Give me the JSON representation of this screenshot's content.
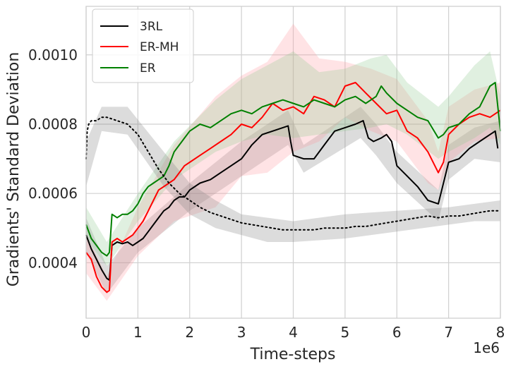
{
  "chart_data": {
    "type": "line",
    "xlabel": "Time-steps",
    "ylabel": "Gradients' Standard Deviation",
    "x_scale_label": "1e6",
    "xlim": [
      0,
      8
    ],
    "ylim": [
      0.00024,
      0.00114
    ],
    "x_ticks": [
      0,
      1,
      2,
      3,
      4,
      5,
      6,
      7,
      8
    ],
    "x_tick_labels": [
      "0",
      "1",
      "2",
      "3",
      "4",
      "5",
      "6",
      "7",
      "8"
    ],
    "y_ticks": [
      0.0004,
      0.0006,
      0.0008,
      0.001
    ],
    "y_tick_labels": [
      "0.0004",
      "0.0006",
      "0.0008",
      "0.0010"
    ],
    "grid": true,
    "legend_position": "top-left",
    "series": [
      {
        "name": "3RL",
        "color": "#000000",
        "style": "solid",
        "x": [
          0.0,
          0.1,
          0.2,
          0.3,
          0.4,
          0.45,
          0.5,
          0.6,
          0.7,
          0.8,
          0.9,
          1.0,
          1.1,
          1.2,
          1.3,
          1.4,
          1.5,
          1.6,
          1.7,
          1.8,
          1.9,
          2.0,
          2.2,
          2.4,
          2.6,
          2.8,
          3.0,
          3.1,
          3.2,
          3.4,
          3.6,
          3.8,
          3.9,
          3.95,
          4.0,
          4.1,
          4.2,
          4.3,
          4.4,
          4.6,
          4.8,
          5.0,
          5.2,
          5.35,
          5.45,
          5.55,
          5.7,
          5.8,
          5.9,
          6.0,
          6.2,
          6.4,
          6.6,
          6.8,
          6.9,
          7.0,
          7.2,
          7.4,
          7.6,
          7.8,
          7.9,
          7.95
        ],
        "y": [
          0.00048,
          0.00044,
          0.00041,
          0.00038,
          0.000355,
          0.00035,
          0.00045,
          0.00046,
          0.000455,
          0.00046,
          0.00045,
          0.00046,
          0.00047,
          0.00049,
          0.00051,
          0.00053,
          0.00055,
          0.00056,
          0.00058,
          0.00059,
          0.00059,
          0.00061,
          0.00063,
          0.00064,
          0.00066,
          0.00068,
          0.0007,
          0.00072,
          0.00074,
          0.00077,
          0.00078,
          0.00079,
          0.000795,
          0.00075,
          0.00071,
          0.000705,
          0.0007,
          0.0007,
          0.0007,
          0.00074,
          0.00078,
          0.00079,
          0.0008,
          0.00081,
          0.00076,
          0.00075,
          0.00076,
          0.00077,
          0.00075,
          0.00068,
          0.00065,
          0.00062,
          0.00058,
          0.00057,
          0.00063,
          0.00069,
          0.0007,
          0.00073,
          0.00075,
          0.00077,
          0.00078,
          0.00073
        ]
      },
      {
        "name": "ER-MH",
        "color": "#ff0000",
        "style": "solid",
        "x": [
          0.0,
          0.1,
          0.2,
          0.3,
          0.4,
          0.45,
          0.5,
          0.6,
          0.7,
          0.8,
          0.9,
          1.0,
          1.1,
          1.2,
          1.3,
          1.4,
          1.5,
          1.6,
          1.7,
          1.8,
          1.9,
          2.0,
          2.2,
          2.4,
          2.6,
          2.8,
          3.0,
          3.2,
          3.4,
          3.6,
          3.8,
          4.0,
          4.2,
          4.4,
          4.6,
          4.8,
          5.0,
          5.2,
          5.4,
          5.6,
          5.8,
          6.0,
          6.2,
          6.4,
          6.6,
          6.8,
          6.9,
          7.0,
          7.2,
          7.4,
          7.6,
          7.8,
          8.0
        ],
        "y": [
          0.00043,
          0.00041,
          0.00036,
          0.00033,
          0.000315,
          0.00032,
          0.00046,
          0.00047,
          0.00046,
          0.00047,
          0.00048,
          0.0005,
          0.00052,
          0.00055,
          0.00058,
          0.00061,
          0.00062,
          0.00063,
          0.00064,
          0.00066,
          0.00068,
          0.00069,
          0.00071,
          0.00073,
          0.00075,
          0.00077,
          0.0008,
          0.00079,
          0.00082,
          0.00086,
          0.00084,
          0.00085,
          0.00083,
          0.00088,
          0.00087,
          0.00085,
          0.00091,
          0.00092,
          0.00089,
          0.00086,
          0.00083,
          0.00084,
          0.00078,
          0.00076,
          0.00072,
          0.00066,
          0.00069,
          0.00077,
          0.0008,
          0.00082,
          0.00083,
          0.00082,
          0.00084
        ]
      },
      {
        "name": "ER",
        "color": "#008000",
        "style": "solid",
        "x": [
          0.0,
          0.1,
          0.2,
          0.3,
          0.4,
          0.45,
          0.5,
          0.6,
          0.7,
          0.8,
          0.9,
          1.0,
          1.1,
          1.2,
          1.3,
          1.4,
          1.5,
          1.6,
          1.7,
          1.8,
          1.9,
          2.0,
          2.2,
          2.4,
          2.6,
          2.8,
          3.0,
          3.2,
          3.4,
          3.6,
          3.8,
          4.0,
          4.2,
          4.4,
          4.6,
          4.8,
          5.0,
          5.2,
          5.4,
          5.6,
          5.7,
          5.8,
          6.0,
          6.2,
          6.4,
          6.6,
          6.8,
          6.9,
          7.0,
          7.2,
          7.4,
          7.6,
          7.8,
          7.9,
          8.0
        ],
        "y": [
          0.00051,
          0.00047,
          0.00045,
          0.00043,
          0.00042,
          0.00043,
          0.00054,
          0.00053,
          0.00054,
          0.00054,
          0.00055,
          0.00057,
          0.0006,
          0.00062,
          0.00063,
          0.00064,
          0.00065,
          0.00068,
          0.00072,
          0.00074,
          0.00076,
          0.00078,
          0.0008,
          0.00079,
          0.00081,
          0.00083,
          0.00084,
          0.00083,
          0.00085,
          0.00086,
          0.00087,
          0.00086,
          0.00085,
          0.00087,
          0.00086,
          0.00085,
          0.00087,
          0.00088,
          0.00086,
          0.00088,
          0.00091,
          0.00089,
          0.00086,
          0.00084,
          0.00082,
          0.00081,
          0.00076,
          0.00077,
          0.00079,
          0.0008,
          0.00083,
          0.00085,
          0.00091,
          0.00092,
          0.00078
        ]
      },
      {
        "name": "",
        "color": "#000000",
        "style": "dotted",
        "x": [
          0.0,
          0.02,
          0.05,
          0.1,
          0.2,
          0.3,
          0.4,
          0.5,
          0.6,
          0.8,
          1.0,
          1.2,
          1.4,
          1.6,
          1.8,
          2.0,
          2.2,
          2.4,
          2.6,
          2.8,
          3.0,
          3.2,
          3.4,
          3.6,
          3.8,
          4.0,
          4.2,
          4.4,
          4.6,
          4.8,
          5.0,
          5.2,
          5.4,
          5.6,
          5.8,
          6.0,
          6.2,
          6.4,
          6.6,
          6.8,
          7.0,
          7.2,
          7.4,
          7.6,
          7.8,
          8.0
        ],
        "y": [
          0.0007,
          0.00078,
          0.0008,
          0.00081,
          0.00081,
          0.00082,
          0.00082,
          0.000815,
          0.00081,
          0.0008,
          0.00077,
          0.00072,
          0.00067,
          0.00063,
          0.0006,
          0.00058,
          0.00056,
          0.000545,
          0.000535,
          0.000525,
          0.000515,
          0.00051,
          0.000505,
          0.0005,
          0.000495,
          0.000495,
          0.000495,
          0.000495,
          0.0005,
          0.0005,
          0.0005,
          0.000505,
          0.000505,
          0.00051,
          0.000515,
          0.00052,
          0.000525,
          0.00053,
          0.000535,
          0.00053,
          0.000535,
          0.000535,
          0.00054,
          0.000545,
          0.00055,
          0.00055
        ]
      }
    ],
    "bands": [
      {
        "series": "3RL",
        "color": "#808080",
        "x": [
          0,
          0.4,
          1,
          2,
          3,
          3.9,
          4.2,
          5.3,
          5.6,
          6,
          6.8,
          7,
          7.5,
          8
        ],
        "low": [
          0.00043,
          0.00031,
          0.00043,
          0.00055,
          0.00065,
          0.00074,
          0.00066,
          0.00076,
          0.00071,
          0.00063,
          0.00052,
          0.00064,
          0.0007,
          0.00069
        ],
        "high": [
          0.00053,
          0.00039,
          0.0005,
          0.00063,
          0.00075,
          0.00084,
          0.00074,
          0.00085,
          0.0008,
          0.00072,
          0.00061,
          0.00074,
          0.00079,
          0.00081
        ]
      },
      {
        "series": "ER-MH",
        "color": "#ff9aa2",
        "x": [
          0,
          0.4,
          1,
          1.7,
          2.5,
          3,
          3.5,
          4,
          4.5,
          5,
          5.5,
          6,
          6.6,
          6.8,
          7,
          7.5,
          8
        ],
        "low": [
          0.00037,
          0.00029,
          0.00042,
          0.00052,
          0.00056,
          0.00065,
          0.00066,
          0.00072,
          0.00075,
          0.00082,
          0.00078,
          0.00075,
          0.00063,
          0.00061,
          0.00069,
          0.00075,
          0.00076
        ],
        "high": [
          0.00048,
          0.00036,
          0.00056,
          0.00074,
          0.00088,
          0.00094,
          0.00098,
          0.00109,
          0.00099,
          0.00098,
          0.00096,
          0.00093,
          0.00081,
          0.00072,
          0.00085,
          0.0009,
          0.00092
        ]
      },
      {
        "series": "ER",
        "color": "#8fc98f",
        "x": [
          0,
          0.4,
          1,
          1.7,
          2.5,
          3,
          3.5,
          4,
          4.5,
          5,
          5.5,
          5.8,
          6.2,
          6.8,
          7,
          7.5,
          7.8,
          8
        ],
        "low": [
          0.00047,
          0.00039,
          0.00052,
          0.00064,
          0.00072,
          0.00075,
          0.00077,
          0.00076,
          0.00077,
          0.00078,
          0.00079,
          0.0008,
          0.00077,
          0.0007,
          0.00072,
          0.00076,
          0.00079,
          0.00074
        ],
        "high": [
          0.00056,
          0.00046,
          0.0006,
          0.00075,
          0.00087,
          0.00093,
          0.00097,
          0.00101,
          0.00095,
          0.00096,
          0.00099,
          0.001,
          0.00092,
          0.00085,
          0.00088,
          0.00097,
          0.00101,
          0.00088
        ]
      },
      {
        "series": "",
        "color": "#808080",
        "x": [
          0,
          0.3,
          0.8,
          1.5,
          2,
          2.5,
          3,
          3.5,
          4,
          5,
          6,
          7,
          7.5,
          8
        ],
        "low": [
          0.00062,
          0.00078,
          0.00077,
          0.00062,
          0.00054,
          0.0005,
          0.00048,
          0.00046,
          0.00046,
          0.00047,
          0.00049,
          0.00051,
          0.00052,
          0.00052
        ],
        "high": [
          0.00075,
          0.00085,
          0.00085,
          0.00072,
          0.00063,
          0.00058,
          0.00054,
          0.00053,
          0.00052,
          0.00054,
          0.00055,
          0.00056,
          0.00057,
          0.00058
        ]
      }
    ]
  }
}
